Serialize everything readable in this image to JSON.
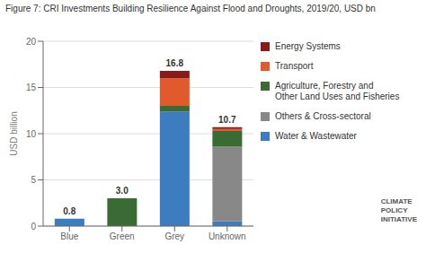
{
  "chart_data": {
    "type": "bar",
    "stacked": true,
    "title": "Figure 7: CRI Investments Building Resilience Against Flood and Droughts, 2019/20, USD bn",
    "ylabel": "USD billion",
    "categories": [
      "Blue",
      "Green",
      "Grey",
      "Unknown"
    ],
    "series": [
      {
        "name": "Water & Wastewater",
        "color": "#3B7DBF",
        "values": [
          0.8,
          0.0,
          12.4,
          0.5
        ]
      },
      {
        "name": "Others & Cross-sectoral",
        "color": "#888888",
        "values": [
          0.0,
          0.0,
          0.0,
          8.1
        ]
      },
      {
        "name": "Agriculture, Forestry and\nOther Land Uses and Fisheries",
        "color": "#3A6B35",
        "values": [
          0.0,
          3.0,
          0.6,
          1.7
        ]
      },
      {
        "name": "Transport",
        "color": "#E05A2B",
        "values": [
          0.0,
          0.0,
          3.0,
          0.2
        ]
      },
      {
        "name": "Energy Systems",
        "color": "#8B1A1A",
        "values": [
          0.0,
          0.0,
          0.8,
          0.2
        ]
      }
    ],
    "totals": [
      0.8,
      3.0,
      16.8,
      10.7
    ],
    "total_labels": [
      "0.8",
      "3.0",
      "16.8",
      "10.7"
    ],
    "ylim": [
      0,
      20
    ],
    "yticks": [
      0,
      5,
      10,
      15,
      20
    ],
    "grid": true,
    "annotations": [
      "CLIMATE\nPOLICY\nINITIATIVE"
    ]
  }
}
